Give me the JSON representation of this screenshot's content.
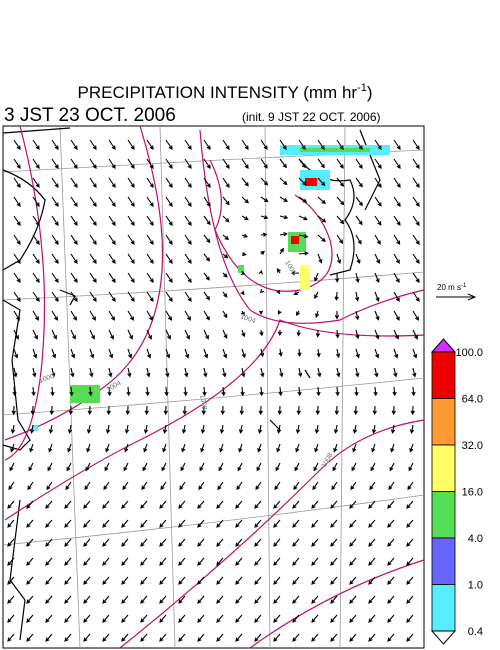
{
  "header": {
    "title": "PRECIPITATION INTENSITY (mm hr",
    "title_exponent": "-1",
    "title_close": ")",
    "valid_time": "3 JST 23 OCT. 2006",
    "init_time": "(init. 9 JST 22 OCT. 2006)"
  },
  "wind_scale": {
    "label": "20 m s",
    "exponent": "-1"
  },
  "isobars": {
    "labels": [
      "1000",
      "1004",
      "1008",
      "1000",
      "1008",
      "1004"
    ]
  },
  "legend": {
    "labels": [
      "100.0",
      "64.0",
      "32.0",
      "16.0",
      "4.0",
      "1.0",
      "0.4"
    ],
    "colors": [
      "#cc33ff",
      "#ee0000",
      "#ff9933",
      "#ffff66",
      "#55dd55",
      "#6666ff",
      "#55eeff",
      "#ffffff"
    ]
  }
}
